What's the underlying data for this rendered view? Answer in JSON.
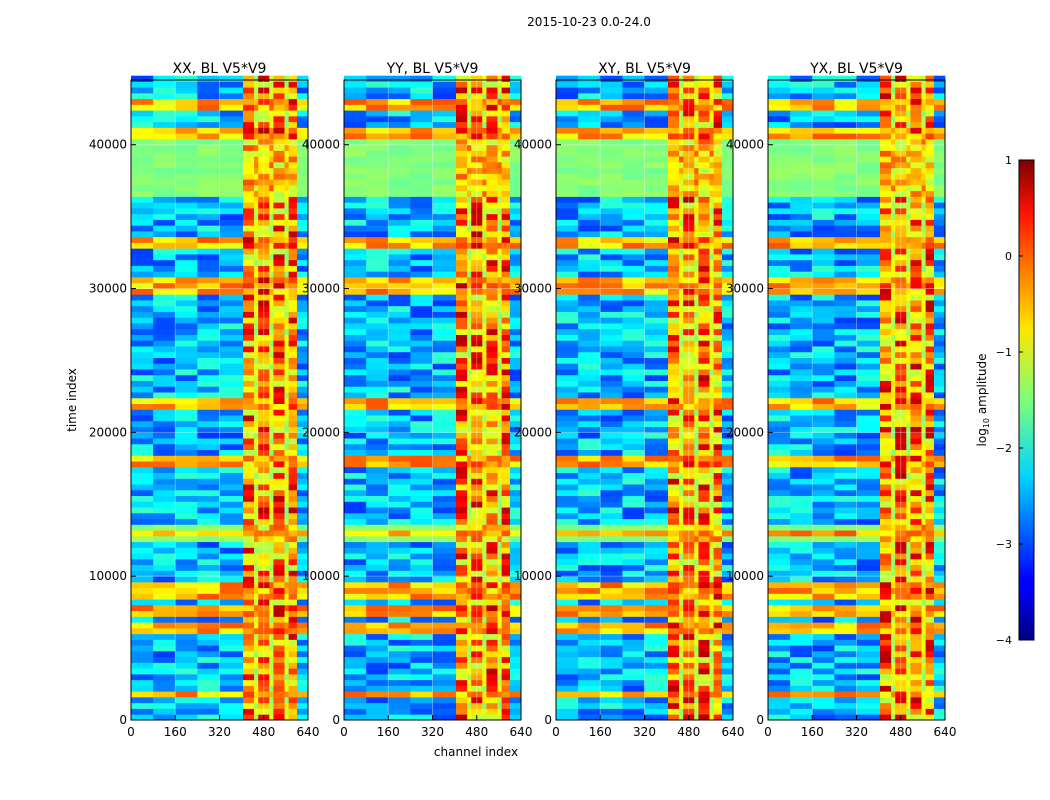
{
  "figure_title": "2015-10-23 0.0-24.0",
  "xlabel": "channel index",
  "ylabel": "time index",
  "colorbar": {
    "label_main": "log",
    "label_sub": "10",
    "label_rest": " amplitude",
    "range": [
      -4,
      1
    ],
    "ticks": [
      1,
      0,
      -1,
      -2,
      -3,
      -4
    ],
    "tick_labels": [
      "1",
      "0",
      "−1",
      "−2",
      "−3",
      "−4"
    ],
    "colormap": "jet"
  },
  "chart_data": [
    {
      "type": "heatmap",
      "title": "XX, BL V5*V9",
      "xlim": [
        0,
        640
      ],
      "ylim": [
        0,
        44500
      ],
      "xticks": [
        0,
        160,
        320,
        480,
        640
      ],
      "xtick_labels": [
        "0",
        "160",
        "320",
        "480",
        "640"
      ],
      "yticks": [
        0,
        10000,
        20000,
        30000,
        40000
      ],
      "ytick_labels": [
        "0",
        "10000",
        "20000",
        "30000",
        "40000"
      ],
      "high_band_channels": [
        405,
        600
      ],
      "saturated_time_ranges": [
        [
          36500,
          40500
        ],
        [
          12500,
          13600
        ]
      ],
      "rfi_time_rows": [
        42700,
        40700,
        33200,
        30300,
        29800,
        21900,
        18000,
        13000,
        9200,
        8600,
        7600,
        6500,
        1800
      ]
    },
    {
      "type": "heatmap",
      "title": "YY, BL V5*V9",
      "xlim": [
        0,
        640
      ],
      "ylim": [
        0,
        44500
      ],
      "xticks": [
        0,
        160,
        320,
        480,
        640
      ],
      "xtick_labels": [
        "0",
        "160",
        "320",
        "480",
        "640"
      ],
      "yticks": [
        0,
        10000,
        20000,
        30000,
        40000
      ],
      "ytick_labels": [
        "0",
        "10000",
        "20000",
        "30000",
        "40000"
      ],
      "high_band_channels": [
        405,
        600
      ],
      "saturated_time_ranges": [
        [
          36500,
          40500
        ],
        [
          12500,
          13600
        ]
      ],
      "rfi_time_rows": [
        42700,
        40700,
        33200,
        30300,
        29800,
        21900,
        18000,
        13000,
        9200,
        8600,
        7600,
        6500,
        1800
      ]
    },
    {
      "type": "heatmap",
      "title": "XY, BL V5*V9",
      "xlim": [
        0,
        640
      ],
      "ylim": [
        0,
        44500
      ],
      "xticks": [
        0,
        160,
        320,
        480,
        640
      ],
      "xtick_labels": [
        "0",
        "160",
        "320",
        "480",
        "640"
      ],
      "yticks": [
        0,
        10000,
        20000,
        30000,
        40000
      ],
      "ytick_labels": [
        "0",
        "10000",
        "20000",
        "30000",
        "40000"
      ],
      "high_band_channels": [
        405,
        600
      ],
      "saturated_time_ranges": [
        [
          36500,
          40500
        ],
        [
          12500,
          13600
        ]
      ],
      "rfi_time_rows": [
        42700,
        40700,
        33200,
        30300,
        29800,
        21900,
        18000,
        13000,
        9200,
        8600,
        7600,
        6500,
        1800
      ]
    },
    {
      "type": "heatmap",
      "title": "YX, BL V5*V9",
      "xlim": [
        0,
        640
      ],
      "ylim": [
        0,
        44500
      ],
      "xticks": [
        0,
        160,
        320,
        480,
        640
      ],
      "xtick_labels": [
        "0",
        "160",
        "320",
        "480",
        "640"
      ],
      "yticks": [
        0,
        10000,
        20000,
        30000,
        40000
      ],
      "ytick_labels": [
        "0",
        "10000",
        "20000",
        "30000",
        "40000"
      ],
      "high_band_channels": [
        405,
        600
      ],
      "saturated_time_ranges": [
        [
          36500,
          40500
        ],
        [
          12500,
          13600
        ]
      ],
      "rfi_time_rows": [
        42700,
        40700,
        33200,
        30300,
        29800,
        21900,
        18000,
        13000,
        9200,
        8600,
        7600,
        6500,
        1800
      ]
    }
  ]
}
